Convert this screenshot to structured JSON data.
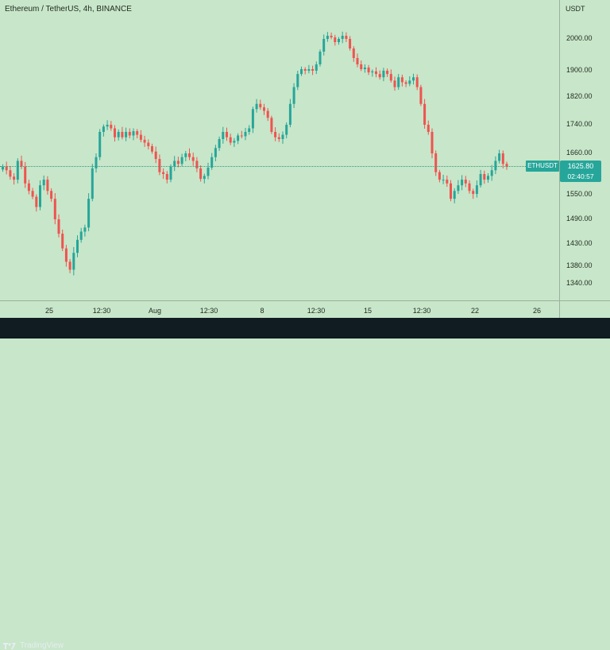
{
  "header": {
    "legend": "Ethereum / TetherUS, 4h, BINANCE",
    "currency": "USDT"
  },
  "price_axis": {
    "ticks": [
      "2000.00",
      "1900.00",
      "1820.00",
      "1740.00",
      "1660.00",
      "1550.00",
      "1490.00",
      "1430.00",
      "1380.00",
      "1340.00"
    ]
  },
  "time_axis": {
    "ticks": [
      "25",
      "12:30",
      "Aug",
      "12:30",
      "8",
      "12:30",
      "15",
      "12:30",
      "22",
      "26"
    ]
  },
  "last_price": {
    "symbol": "ETHUSDT",
    "value": "1625.80",
    "countdown": "02:40:57"
  },
  "colors": {
    "up": "#26a69a",
    "down": "#ef5350",
    "background": "#c8e6c9",
    "footer": "#101b22"
  },
  "footer": {
    "brand": "TradingView",
    "logo_icon": "tradingview-logo-icon"
  },
  "chart_data": {
    "type": "candlestick",
    "title": "Ethereum / TetherUS, 4h, BINANCE",
    "xlabel": "",
    "ylabel": "",
    "ylim": [
      1320,
      2080
    ],
    "x_ticks": [
      "25",
      "12:30",
      "Aug",
      "12:30",
      "8",
      "12:30",
      "15",
      "12:30",
      "22",
      "26"
    ],
    "y_ticks": [
      2000,
      1900,
      1820,
      1740,
      1660,
      1550,
      1490,
      1430,
      1380,
      1340
    ],
    "close": [
      1625,
      1615,
      1598,
      1590,
      1640,
      1625,
      1580,
      1560,
      1545,
      1520,
      1575,
      1590,
      1560,
      1540,
      1490,
      1455,
      1420,
      1390,
      1372,
      1410,
      1440,
      1460,
      1470,
      1540,
      1620,
      1650,
      1720,
      1735,
      1740,
      1730,
      1705,
      1720,
      1705,
      1720,
      1710,
      1722,
      1712,
      1698,
      1690,
      1680,
      1665,
      1645,
      1610,
      1605,
      1590,
      1625,
      1640,
      1632,
      1650,
      1660,
      1650,
      1640,
      1620,
      1592,
      1600,
      1622,
      1650,
      1675,
      1700,
      1720,
      1705,
      1690,
      1695,
      1710,
      1708,
      1720,
      1730,
      1785,
      1800,
      1790,
      1780,
      1760,
      1720,
      1705,
      1700,
      1712,
      1740,
      1800,
      1850,
      1890,
      1905,
      1900,
      1905,
      1900,
      1920,
      1960,
      2000,
      2010,
      2005,
      1990,
      2000,
      2010,
      2000,
      1970,
      1940,
      1920,
      1905,
      1910,
      1895,
      1898,
      1890,
      1880,
      1900,
      1890,
      1870,
      1850,
      1880,
      1865,
      1860,
      1870,
      1880,
      1850,
      1800,
      1740,
      1720,
      1660,
      1610,
      1590,
      1590,
      1580,
      1540,
      1560,
      1575,
      1590,
      1580,
      1560,
      1552,
      1575,
      1605,
      1590,
      1600,
      1615,
      1640,
      1660,
      1632,
      1625
    ],
    "up_color": "#26a69a",
    "down_color": "#ef5350",
    "grid": false,
    "legend": "none"
  }
}
